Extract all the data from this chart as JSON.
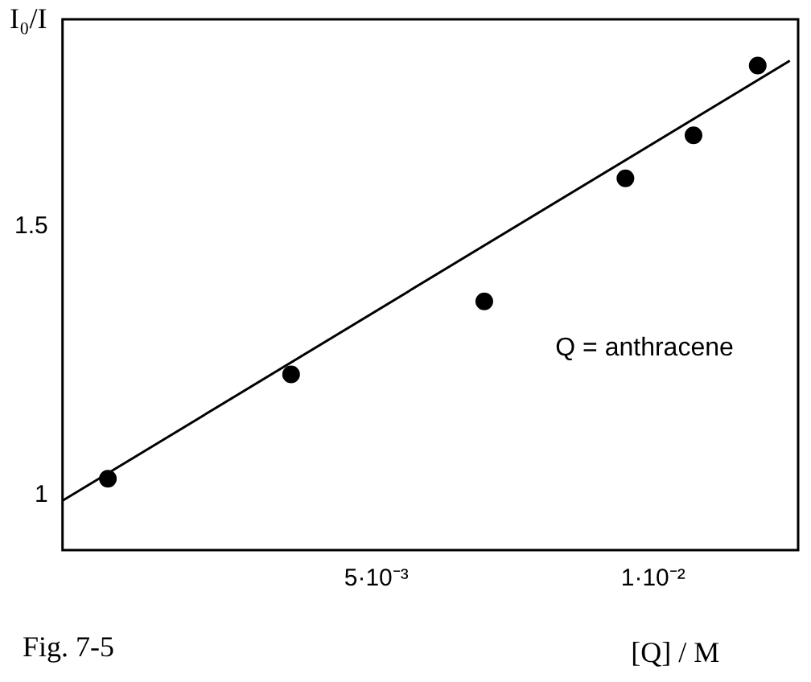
{
  "chart_data": {
    "type": "scatter",
    "xlabel": "[Q] / M",
    "ylabel": "I₀/I",
    "xlim": [
      -0.00067,
      0.01262
    ],
    "ylim": [
      0.898,
      1.886
    ],
    "xticks": [
      {
        "value": 0.005,
        "label": "5·10⁻³"
      },
      {
        "value": 0.01,
        "label": "1·10⁻²"
      }
    ],
    "yticks": [
      1,
      1.5
    ],
    "grid": false,
    "legend": false,
    "marker": "circle",
    "series": [
      {
        "type": "scatter",
        "color": "#000000",
        "x": [
          0.00015,
          0.00346,
          0.00695,
          0.0095,
          0.01073,
          0.01189
        ],
        "values": [
          1.031,
          1.225,
          1.361,
          1.59,
          1.67,
          1.8
        ]
      },
      {
        "type": "line",
        "color": "#000000",
        "line_style": "solid",
        "marker": "none",
        "x": [
          -0.00067,
          0.01247
        ],
        "values": [
          0.99,
          1.809
        ]
      }
    ],
    "annotations": [
      "Q = anthracene",
      "Fig. 7-5"
    ]
  }
}
